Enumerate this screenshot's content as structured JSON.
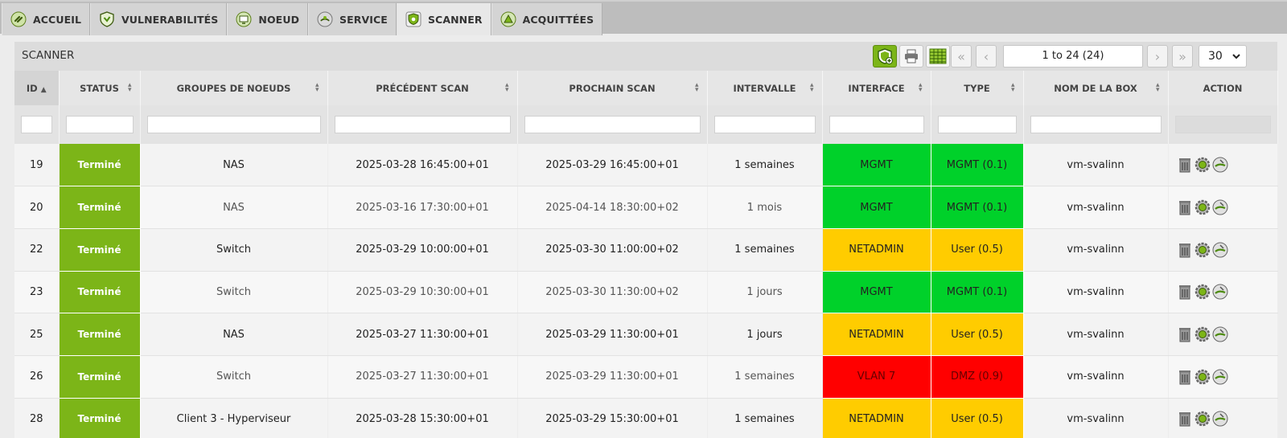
{
  "tabs": [
    {
      "label": "ACCUEIL",
      "icon": "link-icon",
      "active": false
    },
    {
      "label": "VULNERABILITÉS",
      "icon": "shield-icon",
      "active": false
    },
    {
      "label": "NOEUD",
      "icon": "monitor-icon",
      "active": false
    },
    {
      "label": "SERVICE",
      "icon": "service-icon",
      "active": false
    },
    {
      "label": "SCANNER",
      "icon": "scanner-shield-icon",
      "active": true
    },
    {
      "label": "ACQUITTÉES",
      "icon": "acknowledged-icon",
      "active": false
    }
  ],
  "panel": {
    "title": "SCANNER",
    "pager_text": "1 to 24 (24)",
    "page_size": "30"
  },
  "columns": [
    "ID",
    "STATUS",
    "GROUPES DE NOEUDS",
    "PRÉCÉDENT SCAN",
    "PROCHAIN SCAN",
    "INTERVALLE",
    "INTERFACE",
    "TYPE",
    "NOM DE LA BOX",
    "ACTION"
  ],
  "colors": {
    "status_green": "#7cb518",
    "mgmt_green": "#00d12a",
    "netadmin_yellow": "#ffcc00",
    "vlan_red": "#ff0000"
  },
  "rows": [
    {
      "id": "19",
      "status": "Terminé",
      "group": "NAS",
      "prev": "2025-03-28 16:45:00+01",
      "next": "2025-03-29 16:45:00+01",
      "interval": "1 semaines",
      "interface": "MGMT",
      "type": "MGMT (0.1)",
      "box": "vm-svalinn",
      "color": "#00d12a",
      "bold": true
    },
    {
      "id": "20",
      "status": "Terminé",
      "group": "NAS",
      "prev": "2025-03-16 17:30:00+01",
      "next": "2025-04-14 18:30:00+02",
      "interval": "1 mois",
      "interface": "MGMT",
      "type": "MGMT (0.1)",
      "box": "vm-svalinn",
      "color": "#00d12a",
      "bold": false
    },
    {
      "id": "22",
      "status": "Terminé",
      "group": "Switch",
      "prev": "2025-03-29 10:00:00+01",
      "next": "2025-03-30 11:00:00+02",
      "interval": "1 semaines",
      "interface": "NETADMIN",
      "type": "User (0.5)",
      "box": "vm-svalinn",
      "color": "#ffcc00",
      "bold": true
    },
    {
      "id": "23",
      "status": "Terminé",
      "group": "Switch",
      "prev": "2025-03-29 10:30:00+01",
      "next": "2025-03-30 11:30:00+02",
      "interval": "1 jours",
      "interface": "MGMT",
      "type": "MGMT (0.1)",
      "box": "vm-svalinn",
      "color": "#00d12a",
      "bold": false
    },
    {
      "id": "25",
      "status": "Terminé",
      "group": "NAS",
      "prev": "2025-03-27 11:30:00+01",
      "next": "2025-03-29 11:30:00+01",
      "interval": "1 jours",
      "interface": "NETADMIN",
      "type": "User (0.5)",
      "box": "vm-svalinn",
      "color": "#ffcc00",
      "bold": true
    },
    {
      "id": "26",
      "status": "Terminé",
      "group": "Switch",
      "prev": "2025-03-27 11:30:00+01",
      "next": "2025-03-29 11:30:00+01",
      "interval": "1 semaines",
      "interface": "VLAN 7",
      "type": "DMZ (0.9)",
      "box": "vm-svalinn",
      "color": "#ff0000",
      "bold": false
    },
    {
      "id": "28",
      "status": "Terminé",
      "group": "Client 3 - Hyperviseur",
      "prev": "2025-03-28 15:30:00+01",
      "next": "2025-03-29 15:30:00+01",
      "interval": "1 semaines",
      "interface": "NETADMIN",
      "type": "User (0.5)",
      "box": "vm-svalinn",
      "color": "#ffcc00",
      "bold": true
    }
  ]
}
